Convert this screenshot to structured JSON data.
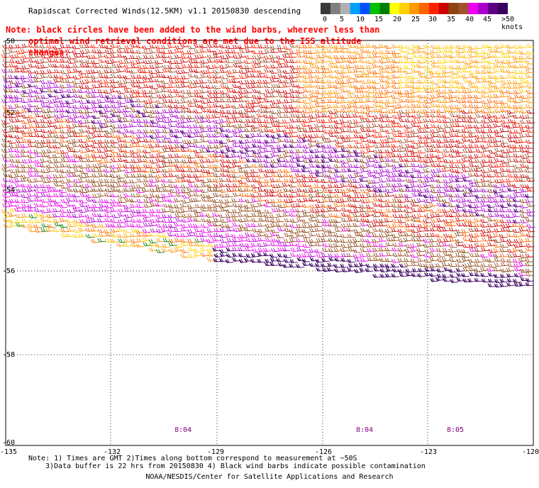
{
  "title": "Rapidscat Corrected Winds(12.5KM) v1.1 20150830 descending",
  "note_line1": "Note: black circles have been added to the wind barbs, wherever less than",
  "note_line2": "optimal wind retrieval conditions are met due to the ISS altitude changes.",
  "colorbar": {
    "ticks": [
      "0",
      "5",
      "10",
      "15",
      "20",
      "25",
      "30",
      "35",
      "40",
      "45",
      ">50 knots"
    ],
    "colors": [
      "#3a3a3a",
      "#7f7f7f",
      "#b0b0b0",
      "#00a0ff",
      "#0050ff",
      "#00c000",
      "#008000",
      "#ffff00",
      "#ffd000",
      "#ff9900",
      "#ff6600",
      "#ff2200",
      "#cc0000",
      "#8b4513",
      "#a0522d",
      "#ee00ee",
      "#aa00cc",
      "#5a0080",
      "#3a0060"
    ]
  },
  "lat_labels": [
    "-50",
    "-52",
    "-54",
    "-56",
    "-58",
    "-60"
  ],
  "lon_labels": [
    "-135",
    "-132",
    "-129",
    "-126",
    "-123",
    "-120"
  ],
  "time_labels": [
    "8:04",
    "8:04",
    "8:05"
  ],
  "footnote_line1": "Note: 1) Times are GMT 2)Times along bottom correspond to measurement at ~50S",
  "footnote_line2": "3)Data buffer is 22 hrs from 20150830 4) Black wind barbs indicate possible contamination",
  "credit": "NOAA/NESDIS/Center for Satellite Applications and Research"
}
